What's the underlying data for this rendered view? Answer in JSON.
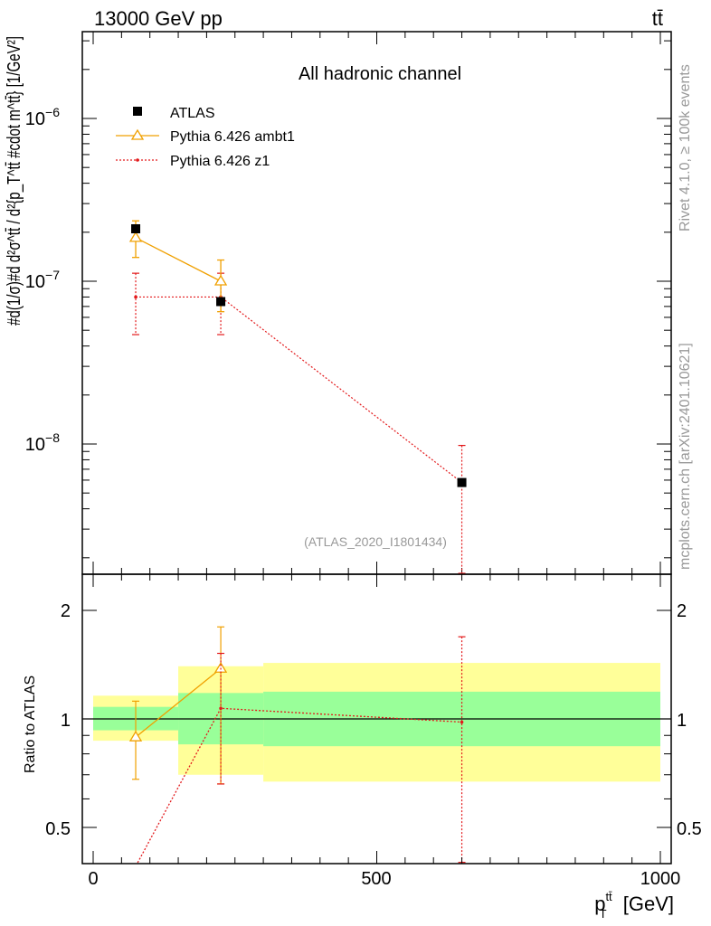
{
  "header": {
    "energy_label": "13000 GeV pp",
    "process_label": "tt̄"
  },
  "side_labels": {
    "rivet": "Rivet 4.1.0, ≥ 100k events",
    "mcplots": "mcplots.cern.ch [arXiv:2401.10621]"
  },
  "chart_data": [
    {
      "type": "line",
      "panel": "main",
      "title": "All hadronic channel",
      "analysis_tag": "(ATLAS_2020_I1801434)",
      "ylabel_text": "#d",
      "ylabel": "#d(1/σ)#d d²σ^tt̄ / d²{p_T^tt̄ #cdot m^tt̄} [1/GeV²]",
      "yscale": "log",
      "ylim": [
        1.8e-09,
        3.5e-06
      ],
      "xlim": [
        -20,
        1000
      ],
      "ytick_labels": [
        {
          "base": "10",
          "exp": "−6",
          "value": 1e-06
        },
        {
          "base": "10",
          "exp": "−7",
          "value": 1e-07
        },
        {
          "base": "10",
          "exp": "−8",
          "value": 1e-08
        }
      ],
      "series": [
        {
          "name": "ATLAS",
          "style": "data",
          "color": "#000000",
          "x": [
            75,
            225,
            650
          ],
          "xerr": [
            0,
            0,
            0
          ],
          "y": [
            2.1e-07,
            7.5e-08,
            5.8e-09
          ],
          "yerr_low": [
            0,
            0,
            0
          ],
          "yerr_high": [
            0,
            0,
            0
          ]
        },
        {
          "name": "Pythia 6.426 ambt1",
          "style": "solid-triangle",
          "color": "#f0a000",
          "x": [
            75,
            225
          ],
          "y": [
            1.85e-07,
            1e-07
          ],
          "yerr_low": [
            1.4e-07,
            6.5e-08
          ],
          "yerr_high": [
            2.35e-07,
            1.35e-07
          ]
        },
        {
          "name": "Pythia 6.426 z1",
          "style": "dotted-dot",
          "color": "#e31a1c",
          "x": [
            75,
            225,
            650
          ],
          "y": [
            8e-08,
            8e-08,
            5.8e-09
          ],
          "yerr_low": [
            4.7e-08,
            4.7e-08,
            1.5e-09
          ],
          "yerr_high": [
            1.12e-07,
            1.12e-07,
            9.8e-09
          ]
        }
      ]
    },
    {
      "type": "line",
      "panel": "ratio",
      "ylabel": "Ratio to ATLAS",
      "xlabel_base": "p",
      "xlabel_sub": "T",
      "xlabel_sup": "tt̄",
      "xlabel_unit": "[GeV]",
      "yscale": "log",
      "ylim": [
        0.43,
        2.5
      ],
      "xlim": [
        -20,
        1000
      ],
      "ytick_labels": [
        "0.5",
        "1",
        "2"
      ],
      "ytick_values": [
        0.5,
        1,
        2
      ],
      "xtick_labels": [
        "0",
        "500",
        "1000"
      ],
      "xtick_values": [
        0,
        500,
        1000
      ],
      "bands": [
        {
          "xlo": 0,
          "xhi": 150,
          "yellow": [
            0.87,
            1.16
          ],
          "green": [
            0.93,
            1.08
          ]
        },
        {
          "xlo": 150,
          "xhi": 300,
          "yellow": [
            0.7,
            1.4
          ],
          "green": [
            0.85,
            1.18
          ]
        },
        {
          "xlo": 300,
          "xhi": 1000,
          "yellow": [
            0.67,
            1.43
          ],
          "green": [
            0.84,
            1.19
          ]
        }
      ],
      "series": [
        {
          "name": "Pythia 6.426 ambt1",
          "color": "#f0a000",
          "x": [
            75,
            225
          ],
          "y": [
            0.89,
            1.38
          ],
          "yerr_low": [
            0.68,
            0.66
          ],
          "yerr_high": [
            1.12,
            1.8
          ]
        },
        {
          "name": "Pythia 6.426 z1",
          "color": "#e31a1c",
          "x": [
            75,
            225,
            650
          ],
          "y": [
            0.39,
            1.07,
            0.98
          ],
          "yerr_low": [
            0.39,
            0.66,
            0.4
          ],
          "yerr_high": [
            0.39,
            1.52,
            1.69
          ]
        }
      ]
    }
  ]
}
